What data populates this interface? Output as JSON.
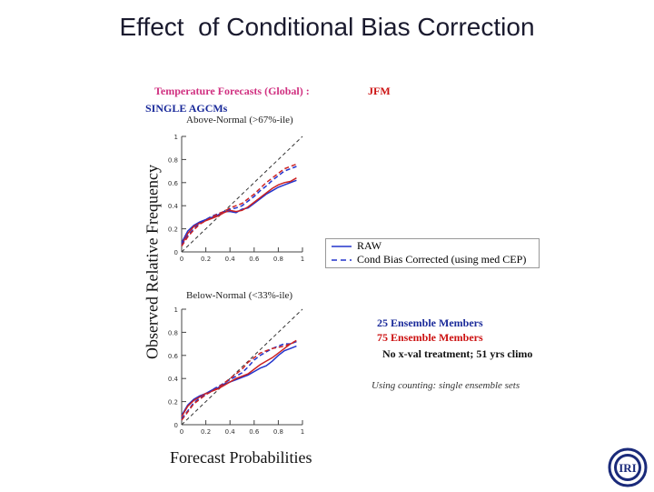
{
  "slide": {
    "title": "Effect  of Conditional Bias Correction",
    "y_axis_label": "Observed Relative Frequency",
    "x_axis_label": "Forecast Probabilities"
  },
  "header": {
    "left": "Temperature Forecasts (Global) :",
    "right": "JFM",
    "sub": "SINGLE AGCMs"
  },
  "legend": {
    "raw": "RAW",
    "corrected": "Cond Bias Corrected (using med CEP)"
  },
  "info": {
    "line1": "25 Ensemble Members",
    "line2": "75 Ensemble Members",
    "line3": "No x-val treatment; 51 yrs climo",
    "note": "Using counting: single ensemble sets"
  },
  "logo": {
    "text": "IRI"
  },
  "colors": {
    "raw": "#2233cc",
    "corrected": "#cc2222",
    "diagonal": "#333333"
  },
  "chart_data": [
    {
      "type": "line",
      "title": "Above-Normal (>67%-ile)",
      "xlabel": "Forecast Probabilities",
      "ylabel": "Observed Relative Frequency",
      "xlim": [
        0,
        1
      ],
      "ylim": [
        0,
        1
      ],
      "xticks": [
        "0",
        "0.2",
        "0.4",
        "0.6",
        "0.8",
        "1"
      ],
      "yticks": [
        "0",
        "0.2",
        "0.4",
        "0.6",
        "0.8",
        "1"
      ],
      "x": [
        0.0,
        0.05,
        0.1,
        0.15,
        0.2,
        0.25,
        0.3,
        0.35,
        0.4,
        0.45,
        0.5,
        0.55,
        0.6,
        0.65,
        0.7,
        0.75,
        0.8,
        0.85,
        0.9,
        0.95
      ],
      "series": [
        {
          "name": "RAW (25)",
          "color": "#2233cc",
          "style": "solid",
          "values": [
            0.08,
            0.18,
            0.23,
            0.26,
            0.28,
            0.3,
            0.32,
            0.35,
            0.35,
            0.34,
            0.37,
            0.38,
            0.42,
            0.46,
            0.5,
            0.53,
            0.56,
            0.58,
            0.6,
            0.62
          ]
        },
        {
          "name": "RAW (75)",
          "color": "#cc2222",
          "style": "solid",
          "values": [
            0.06,
            0.16,
            0.22,
            0.25,
            0.27,
            0.29,
            0.31,
            0.34,
            0.36,
            0.35,
            0.36,
            0.39,
            0.43,
            0.47,
            0.51,
            0.55,
            0.58,
            0.6,
            0.61,
            0.64
          ]
        },
        {
          "name": "Cond Bias Corrected (25)",
          "color": "#2233cc",
          "style": "dashed",
          "values": [
            0.06,
            0.14,
            0.2,
            0.25,
            0.28,
            0.31,
            0.33,
            0.35,
            0.37,
            0.38,
            0.4,
            0.44,
            0.48,
            0.53,
            0.57,
            0.62,
            0.66,
            0.7,
            0.72,
            0.74
          ]
        },
        {
          "name": "Cond Bias Corrected (75)",
          "color": "#cc2222",
          "style": "dashed",
          "values": [
            0.05,
            0.13,
            0.19,
            0.24,
            0.27,
            0.3,
            0.33,
            0.35,
            0.38,
            0.4,
            0.42,
            0.46,
            0.5,
            0.55,
            0.6,
            0.64,
            0.68,
            0.72,
            0.74,
            0.76
          ]
        }
      ]
    },
    {
      "type": "line",
      "title": "Below-Normal (<33%-ile)",
      "xlabel": "Forecast Probabilities",
      "ylabel": "Observed Relative Frequency",
      "xlim": [
        0,
        1
      ],
      "ylim": [
        0,
        1
      ],
      "xticks": [
        "0",
        "0.2",
        "0.4",
        "0.6",
        "0.8",
        "1"
      ],
      "yticks": [
        "0",
        "0.2",
        "0.4",
        "0.6",
        "0.8",
        "1"
      ],
      "x": [
        0.0,
        0.05,
        0.1,
        0.15,
        0.2,
        0.25,
        0.3,
        0.35,
        0.4,
        0.45,
        0.5,
        0.55,
        0.6,
        0.65,
        0.7,
        0.75,
        0.8,
        0.85,
        0.9,
        0.95
      ],
      "series": [
        {
          "name": "RAW (25)",
          "color": "#2233cc",
          "style": "solid",
          "values": [
            0.08,
            0.17,
            0.22,
            0.25,
            0.27,
            0.3,
            0.32,
            0.35,
            0.37,
            0.39,
            0.41,
            0.43,
            0.46,
            0.49,
            0.51,
            0.55,
            0.6,
            0.64,
            0.66,
            0.68
          ]
        },
        {
          "name": "RAW (75)",
          "color": "#cc2222",
          "style": "solid",
          "values": [
            0.07,
            0.16,
            0.21,
            0.24,
            0.27,
            0.29,
            0.31,
            0.34,
            0.37,
            0.4,
            0.42,
            0.44,
            0.48,
            0.52,
            0.55,
            0.58,
            0.62,
            0.66,
            0.7,
            0.72
          ]
        },
        {
          "name": "Cond Bias Corrected (25)",
          "color": "#2233cc",
          "style": "dashed",
          "values": [
            0.05,
            0.12,
            0.19,
            0.23,
            0.26,
            0.3,
            0.33,
            0.36,
            0.39,
            0.42,
            0.45,
            0.5,
            0.56,
            0.6,
            0.63,
            0.66,
            0.68,
            0.7,
            0.7,
            0.72
          ]
        },
        {
          "name": "Cond Bias Corrected (75)",
          "color": "#cc2222",
          "style": "dashed",
          "values": [
            0.04,
            0.11,
            0.18,
            0.22,
            0.26,
            0.29,
            0.32,
            0.36,
            0.4,
            0.44,
            0.48,
            0.54,
            0.58,
            0.62,
            0.64,
            0.66,
            0.67,
            0.68,
            0.7,
            0.73
          ]
        }
      ]
    }
  ]
}
